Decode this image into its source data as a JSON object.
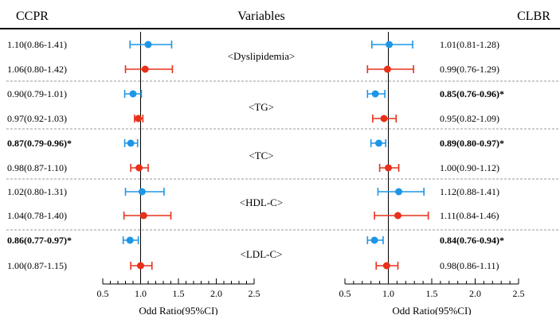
{
  "headers": {
    "left": "CCPR",
    "middle": "Variables",
    "right": "CLBR"
  },
  "xlabel": "Odd Ratio(95%CI)",
  "colors": {
    "blue": "#1e96e6",
    "red": "#e8301a",
    "dash": "#9a9a9a"
  },
  "chart_data": [
    {
      "type": "scatter",
      "subtype": "forest-plot",
      "name": "CCPR",
      "xlabel": "Odd Ratio(95%CI)",
      "xlim": [
        0.5,
        2.5
      ],
      "ticks": [
        0.5,
        1.0,
        1.5,
        2.0,
        2.5
      ],
      "tick_labels": [
        "0.5",
        "1.0",
        "1.5",
        "2.0",
        "2.5"
      ],
      "rows": [
        {
          "group": "<Dyslipidemia>",
          "color": "blue",
          "or": 1.1,
          "lo": 0.86,
          "hi": 1.41,
          "label": "1.10(0.86-1.41)",
          "bold": false
        },
        {
          "group": "<Dyslipidemia>",
          "color": "red",
          "or": 1.06,
          "lo": 0.8,
          "hi": 1.42,
          "label": "1.06(0.80-1.42)",
          "bold": false
        },
        {
          "group": "<TG>",
          "color": "blue",
          "or": 0.9,
          "lo": 0.79,
          "hi": 1.01,
          "label": "0.90(0.79-1.01)",
          "bold": false
        },
        {
          "group": "<TG>",
          "color": "red",
          "or": 0.97,
          "lo": 0.92,
          "hi": 1.03,
          "label": "0.97(0.92-1.03)",
          "bold": false
        },
        {
          "group": "<TC>",
          "color": "blue",
          "or": 0.87,
          "lo": 0.79,
          "hi": 0.96,
          "label": "0.87(0.79-0.96)*",
          "bold": true
        },
        {
          "group": "<TC>",
          "color": "red",
          "or": 0.98,
          "lo": 0.87,
          "hi": 1.1,
          "label": "0.98(0.87-1.10)",
          "bold": false
        },
        {
          "group": "<HDL-C>",
          "color": "blue",
          "or": 1.02,
          "lo": 0.8,
          "hi": 1.31,
          "label": "1.02(0.80-1.31)",
          "bold": false
        },
        {
          "group": "<HDL-C>",
          "color": "red",
          "or": 1.04,
          "lo": 0.78,
          "hi": 1.4,
          "label": "1.04(0.78-1.40)",
          "bold": false
        },
        {
          "group": "<LDL-C>",
          "color": "blue",
          "or": 0.86,
          "lo": 0.77,
          "hi": 0.97,
          "label": "0.86(0.77-0.97)*",
          "bold": true
        },
        {
          "group": "<LDL-C>",
          "color": "red",
          "or": 1.0,
          "lo": 0.87,
          "hi": 1.15,
          "label": "1.00(0.87-1.15)",
          "bold": false
        }
      ]
    },
    {
      "type": "scatter",
      "subtype": "forest-plot",
      "name": "CLBR",
      "xlabel": "Odd Ratio(95%CI)",
      "xlim": [
        0.5,
        2.5
      ],
      "ticks": [
        0.5,
        1.0,
        1.5,
        2.0,
        2.5
      ],
      "tick_labels": [
        "0.5",
        "1.0",
        "1.5",
        "2.0",
        "2.5"
      ],
      "rows": [
        {
          "group": "<Dyslipidemia>",
          "color": "blue",
          "or": 1.01,
          "lo": 0.81,
          "hi": 1.28,
          "label": "1.01(0.81-1.28)",
          "bold": false
        },
        {
          "group": "<Dyslipidemia>",
          "color": "red",
          "or": 0.99,
          "lo": 0.76,
          "hi": 1.29,
          "label": "0.99(0.76-1.29)",
          "bold": false
        },
        {
          "group": "<TG>",
          "color": "blue",
          "or": 0.85,
          "lo": 0.76,
          "hi": 0.96,
          "label": "0.85(0.76-0.96)*",
          "bold": true
        },
        {
          "group": "<TG>",
          "color": "red",
          "or": 0.95,
          "lo": 0.82,
          "hi": 1.09,
          "label": "0.95(0.82-1.09)",
          "bold": false
        },
        {
          "group": "<TC>",
          "color": "blue",
          "or": 0.89,
          "lo": 0.8,
          "hi": 0.97,
          "label": "0.89(0.80-0.97)*",
          "bold": true
        },
        {
          "group": "<TC>",
          "color": "red",
          "or": 1.0,
          "lo": 0.9,
          "hi": 1.12,
          "label": "1.00(0.90-1.12)",
          "bold": false
        },
        {
          "group": "<HDL-C>",
          "color": "blue",
          "or": 1.12,
          "lo": 0.88,
          "hi": 1.41,
          "label": "1.12(0.88-1.41)",
          "bold": false
        },
        {
          "group": "<HDL-C>",
          "color": "red",
          "or": 1.11,
          "lo": 0.84,
          "hi": 1.46,
          "label": "1.11(0.84-1.46)",
          "bold": false
        },
        {
          "group": "<LDL-C>",
          "color": "blue",
          "or": 0.84,
          "lo": 0.76,
          "hi": 0.94,
          "label": "0.84(0.76-0.94)*",
          "bold": true
        },
        {
          "group": "<LDL-C>",
          "color": "red",
          "or": 0.98,
          "lo": 0.86,
          "hi": 1.11,
          "label": "0.98(0.86-1.11)",
          "bold": false
        }
      ]
    }
  ],
  "variables": [
    "<Dyslipidemia>",
    "<TG>",
    "<TC>",
    "<HDL-C>",
    "<LDL-C>"
  ]
}
